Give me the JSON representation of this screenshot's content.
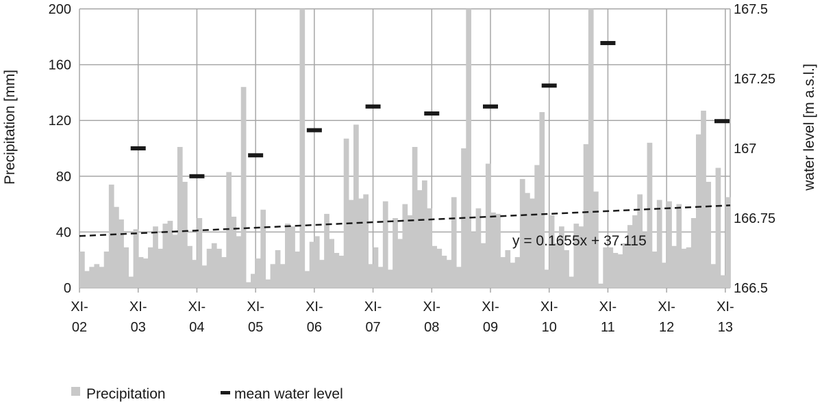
{
  "colors": {
    "precipitation": "#c8c8c8",
    "water_level": "#1a1a1a",
    "grid": "#a6a6a6",
    "trendline": "#1a1a1a"
  },
  "chart_data": {
    "type": "bar",
    "xlabel": "",
    "ylabel_left": "Precipitation [mm]",
    "ylabel_right": "water level [m a.s.l.]",
    "ylim_left": [
      0,
      200
    ],
    "ylim_right": [
      166.5,
      167.5
    ],
    "yticks_left": [
      "0",
      "40",
      "80",
      "120",
      "160",
      "200"
    ],
    "yticks_right": [
      "166.5",
      "166.75",
      "167",
      "167.25",
      "167.5"
    ],
    "x_tick_labels": [
      {
        "top": "XI-",
        "bottom": "02"
      },
      {
        "top": "XI-",
        "bottom": "03"
      },
      {
        "top": "XI-",
        "bottom": "04"
      },
      {
        "top": "XI-",
        "bottom": "05"
      },
      {
        "top": "XI-",
        "bottom": "06"
      },
      {
        "top": "XI-",
        "bottom": "07"
      },
      {
        "top": "XI-",
        "bottom": "08"
      },
      {
        "top": "XI-",
        "bottom": "09"
      },
      {
        "top": "XI-",
        "bottom": "10"
      },
      {
        "top": "XI-",
        "bottom": "11"
      },
      {
        "top": "XI-",
        "bottom": "12"
      },
      {
        "top": "XI-",
        "bottom": "13"
      }
    ],
    "grid": true,
    "series": [
      {
        "name": "Precipitation",
        "kind": "bar",
        "axis": "left",
        "start_month_index": 0,
        "values": [
          26,
          12,
          15,
          17,
          15,
          26,
          74,
          58,
          49,
          29,
          8,
          42,
          22,
          21,
          29,
          44,
          28,
          46,
          48,
          38,
          101,
          76,
          30,
          20,
          50,
          16,
          28,
          32,
          28,
          22,
          83,
          51,
          37,
          144,
          4,
          10,
          21,
          56,
          6,
          17,
          27,
          17,
          46,
          44,
          26,
          200,
          12,
          33,
          37,
          20,
          53,
          35,
          25,
          23,
          107,
          63,
          117,
          64,
          67,
          17,
          29,
          15,
          62,
          13,
          50,
          35,
          60,
          52,
          101,
          70,
          77,
          57,
          30,
          28,
          23,
          20,
          65,
          15,
          100,
          200,
          40,
          57,
          32,
          89,
          54,
          53,
          22,
          27,
          18,
          22,
          78,
          68,
          64,
          88,
          126,
          13,
          52,
          32,
          44,
          27,
          8,
          46,
          44,
          103,
          200,
          69,
          3,
          29,
          29,
          25,
          24,
          32,
          45,
          52,
          67,
          40,
          104,
          26,
          63,
          18,
          62,
          30,
          60,
          28,
          29,
          50,
          110,
          127,
          76,
          17,
          86,
          9,
          65
        ]
      },
      {
        "name": "mean water level",
        "kind": "dash",
        "axis": "right",
        "points": [
          {
            "x": 12,
            "y": 167.0
          },
          {
            "x": 24,
            "y": 166.9
          },
          {
            "x": 36,
            "y": 166.975
          },
          {
            "x": 48,
            "y": 167.065
          },
          {
            "x": 60,
            "y": 167.15
          },
          {
            "x": 72,
            "y": 167.125
          },
          {
            "x": 84,
            "y": 167.15
          },
          {
            "x": 96,
            "y": 167.225
          },
          {
            "x": 108,
            "y": 167.3775
          },
          {
            "x": 133,
            "y": 167.0975
          }
        ]
      }
    ],
    "trendline": {
      "axis": "left",
      "slope": 0.1655,
      "intercept": 37.115,
      "x_start": 0,
      "x_end": 133,
      "label": "y = 0.1655x + 37.115"
    },
    "x_range_months": [
      0,
      133
    ],
    "legend": {
      "position": "bottom-left",
      "items": [
        {
          "label": "Precipitation",
          "kind": "bar"
        },
        {
          "label": "mean water level",
          "kind": "dash"
        }
      ]
    }
  }
}
